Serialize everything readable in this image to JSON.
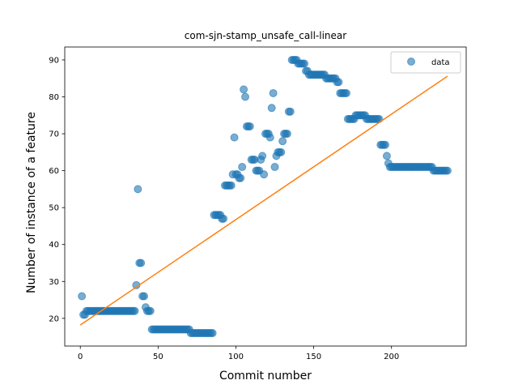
{
  "chart_data": {
    "type": "scatter",
    "title": "com-sjn-stamp_unsafe_call-linear",
    "xlabel": "Commit number",
    "ylabel": "Number of instance of a feature",
    "xlim": [
      -10,
      248
    ],
    "ylim": [
      12.5,
      93.5
    ],
    "xticks": [
      0,
      50,
      100,
      150,
      200
    ],
    "yticks": [
      20,
      30,
      40,
      50,
      60,
      70,
      80,
      90
    ],
    "legend": {
      "entries": [
        "data"
      ],
      "position": "top-right"
    },
    "colors": {
      "data": "#1f77b4",
      "fit": "#ff7f0e"
    },
    "series": [
      {
        "name": "data",
        "kind": "scatter",
        "x": [
          1,
          2,
          3,
          4,
          5,
          6,
          7,
          8,
          9,
          10,
          11,
          12,
          13,
          14,
          15,
          16,
          17,
          18,
          19,
          20,
          21,
          22,
          23,
          24,
          25,
          26,
          27,
          28,
          29,
          30,
          31,
          32,
          33,
          34,
          35,
          36,
          37,
          38,
          39,
          40,
          41,
          42,
          43,
          44,
          45,
          46,
          47,
          48,
          49,
          50,
          51,
          52,
          53,
          54,
          55,
          56,
          57,
          58,
          59,
          60,
          61,
          62,
          63,
          64,
          65,
          66,
          67,
          68,
          69,
          70,
          71,
          72,
          73,
          74,
          75,
          76,
          77,
          78,
          79,
          80,
          81,
          82,
          83,
          84,
          85,
          86,
          87,
          88,
          89,
          90,
          91,
          92,
          93,
          94,
          95,
          96,
          97,
          98,
          99,
          100,
          101,
          102,
          103,
          104,
          105,
          106,
          107,
          108,
          109,
          110,
          111,
          112,
          113,
          114,
          115,
          116,
          117,
          118,
          119,
          120,
          121,
          122,
          123,
          124,
          125,
          126,
          127,
          128,
          129,
          130,
          131,
          132,
          133,
          134,
          135,
          136,
          137,
          138,
          139,
          140,
          141,
          142,
          143,
          144,
          145,
          146,
          147,
          148,
          149,
          150,
          151,
          152,
          153,
          154,
          155,
          156,
          157,
          158,
          159,
          160,
          161,
          162,
          163,
          164,
          165,
          166,
          167,
          168,
          169,
          170,
          171,
          172,
          173,
          174,
          175,
          176,
          177,
          178,
          179,
          180,
          181,
          182,
          183,
          184,
          185,
          186,
          187,
          188,
          189,
          190,
          191,
          192,
          193,
          194,
          195,
          196,
          197,
          198,
          199,
          200,
          201,
          202,
          203,
          204,
          205,
          206,
          207,
          208,
          209,
          210,
          211,
          212,
          213,
          214,
          215,
          216,
          217,
          218,
          219,
          220,
          221,
          222,
          223,
          224,
          225,
          226,
          227,
          228,
          229,
          230,
          231,
          232,
          233,
          234,
          235,
          236
        ],
        "y": [
          26,
          21,
          21,
          22,
          22,
          22,
          22,
          22,
          22,
          22,
          22,
          22,
          22,
          22,
          22,
          22,
          22,
          22,
          22,
          22,
          22,
          22,
          22,
          22,
          22,
          22,
          22,
          22,
          22,
          22,
          22,
          22,
          22,
          22,
          22,
          29,
          55,
          35,
          35,
          26,
          26,
          23,
          22,
          22,
          22,
          17,
          17,
          17,
          17,
          17,
          17,
          17,
          17,
          17,
          17,
          17,
          17,
          17,
          17,
          17,
          17,
          17,
          17,
          17,
          17,
          17,
          17,
          17,
          17,
          17,
          16,
          16,
          16,
          16,
          16,
          16,
          16,
          16,
          16,
          16,
          16,
          16,
          16,
          16,
          16,
          48,
          48,
          48,
          48,
          48,
          47,
          47,
          56,
          56,
          56,
          56,
          56,
          59,
          69,
          59,
          59,
          58,
          58,
          61,
          82,
          80,
          72,
          72,
          72,
          63,
          63,
          63,
          60,
          60,
          60,
          63,
          64,
          59,
          70,
          70,
          70,
          69,
          77,
          81,
          61,
          64,
          65,
          65,
          65,
          68,
          70,
          70,
          70,
          76,
          76,
          90,
          90,
          90,
          90,
          89,
          89,
          89,
          89,
          89,
          87,
          87,
          86,
          86,
          86,
          86,
          86,
          86,
          86,
          86,
          86,
          86,
          86,
          85,
          85,
          85,
          85,
          85,
          85,
          85,
          84,
          84,
          81,
          81,
          81,
          81,
          81,
          74,
          74,
          74,
          74,
          74,
          75,
          75,
          75,
          75,
          75,
          75,
          75,
          74,
          74,
          74,
          74,
          74,
          74,
          74,
          74,
          74,
          67,
          67,
          67,
          67,
          64,
          62,
          61,
          61,
          61,
          61,
          61,
          61,
          61,
          61,
          61,
          61,
          61,
          61,
          61,
          61,
          61,
          61,
          61,
          61,
          61,
          61,
          61,
          61,
          61,
          61,
          61,
          61,
          61,
          61,
          60,
          60,
          60,
          60,
          60,
          60,
          60,
          60,
          60,
          60
        ]
      },
      {
        "name": "",
        "kind": "line",
        "x": [
          0,
          236
        ],
        "y": [
          18.2,
          85.6
        ]
      }
    ]
  }
}
